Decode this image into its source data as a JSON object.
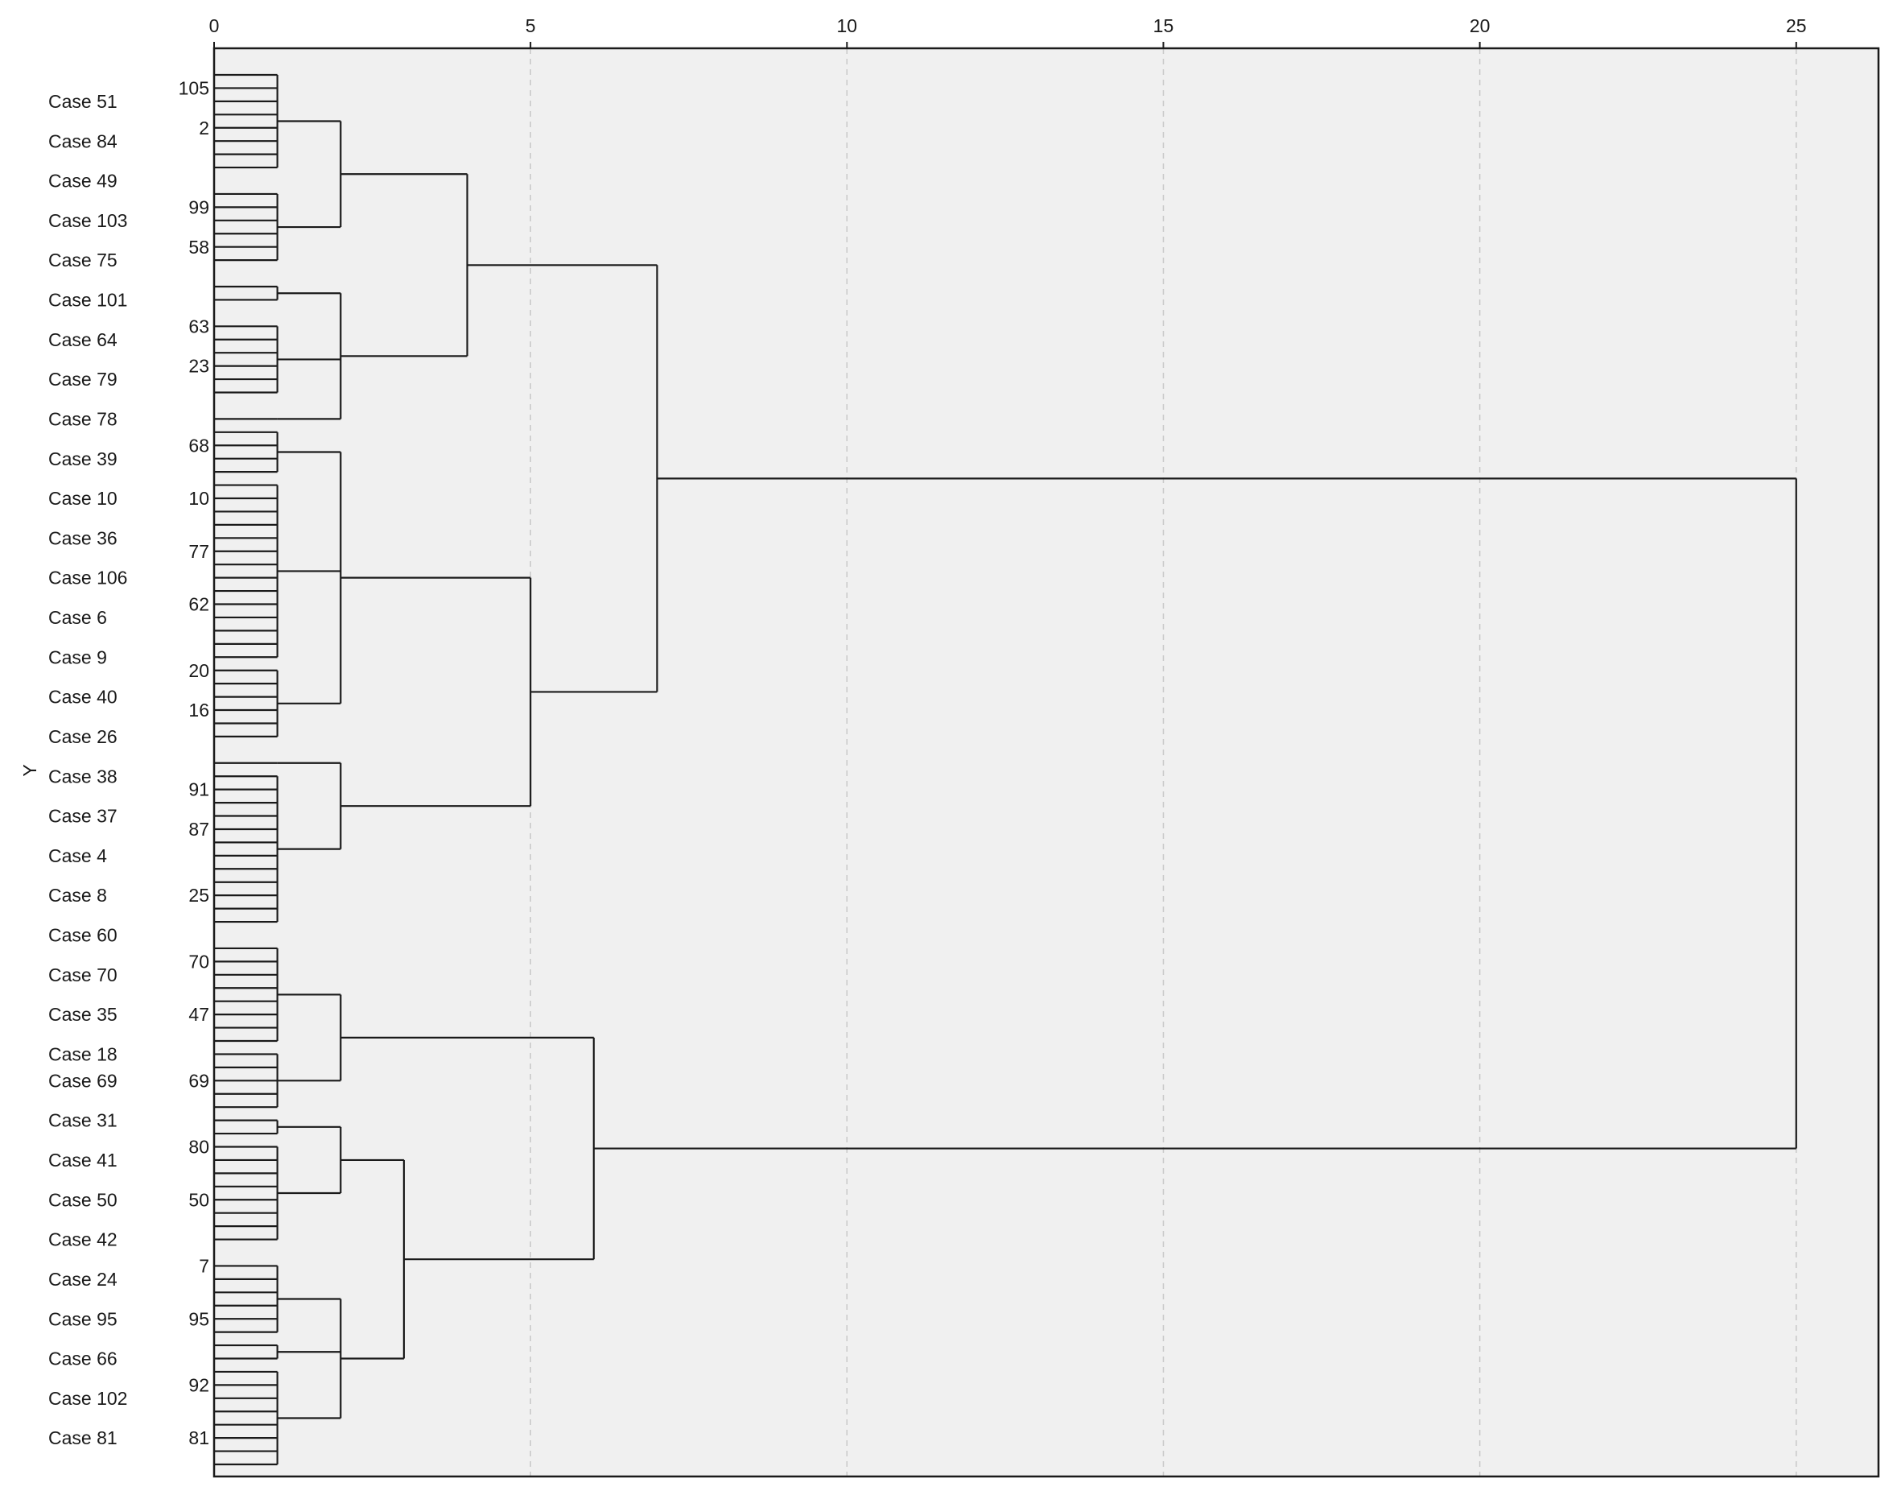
{
  "chart_data": {
    "type": "dendrogram",
    "y_label": "Y",
    "xlim": [
      0,
      26.3
    ],
    "xticks": [
      0,
      5,
      10,
      15,
      20,
      25
    ],
    "grid": true,
    "leaf_count": 106,
    "line_color": "#1a1a1a",
    "background": "#f0f0f0",
    "case_labels": [
      {
        "row": 2,
        "label": "Case 51"
      },
      {
        "row": 5,
        "label": "Case 84"
      },
      {
        "row": 8,
        "label": "Case 49"
      },
      {
        "row": 11,
        "label": "Case 103"
      },
      {
        "row": 14,
        "label": "Case 75"
      },
      {
        "row": 17,
        "label": "Case 101"
      },
      {
        "row": 20,
        "label": "Case 64"
      },
      {
        "row": 23,
        "label": "Case 79"
      },
      {
        "row": 26,
        "label": "Case 78"
      },
      {
        "row": 29,
        "label": "Case 39"
      },
      {
        "row": 32,
        "label": "Case 10"
      },
      {
        "row": 35,
        "label": "Case 36"
      },
      {
        "row": 38,
        "label": "Case 106"
      },
      {
        "row": 41,
        "label": "Case 6"
      },
      {
        "row": 44,
        "label": "Case 9"
      },
      {
        "row": 47,
        "label": "Case 40"
      },
      {
        "row": 50,
        "label": "Case 26"
      },
      {
        "row": 53,
        "label": "Case 38"
      },
      {
        "row": 56,
        "label": "Case 37"
      },
      {
        "row": 59,
        "label": "Case 4"
      },
      {
        "row": 62,
        "label": "Case 8"
      },
      {
        "row": 65,
        "label": "Case 60"
      },
      {
        "row": 68,
        "label": "Case 70"
      },
      {
        "row": 71,
        "label": "Case 35"
      },
      {
        "row": 74,
        "label": "Case 18"
      },
      {
        "row": 76,
        "label": "Case 69"
      },
      {
        "row": 79,
        "label": "Case 31"
      },
      {
        "row": 82,
        "label": "Case 41"
      },
      {
        "row": 85,
        "label": "Case 50"
      },
      {
        "row": 88,
        "label": "Case 42"
      },
      {
        "row": 91,
        "label": "Case 24"
      },
      {
        "row": 94,
        "label": "Case 95"
      },
      {
        "row": 97,
        "label": "Case 66"
      },
      {
        "row": 100,
        "label": "Case 102"
      },
      {
        "row": 103,
        "label": "Case 81"
      }
    ],
    "leaf_numbers": [
      {
        "row": 1,
        "label": "105"
      },
      {
        "row": 4,
        "label": "2"
      },
      {
        "row": 10,
        "label": "99"
      },
      {
        "row": 13,
        "label": "58"
      },
      {
        "row": 19,
        "label": "63"
      },
      {
        "row": 22,
        "label": "23"
      },
      {
        "row": 28,
        "label": "68"
      },
      {
        "row": 32,
        "label": "10"
      },
      {
        "row": 36,
        "label": "77"
      },
      {
        "row": 40,
        "label": "62"
      },
      {
        "row": 45,
        "label": "20"
      },
      {
        "row": 48,
        "label": "16"
      },
      {
        "row": 54,
        "label": "91"
      },
      {
        "row": 57,
        "label": "87"
      },
      {
        "row": 62,
        "label": "25"
      },
      {
        "row": 67,
        "label": "70"
      },
      {
        "row": 71,
        "label": "47"
      },
      {
        "row": 76,
        "label": "69"
      },
      {
        "row": 81,
        "label": "80"
      },
      {
        "row": 85,
        "label": "50"
      },
      {
        "row": 90,
        "label": "7"
      },
      {
        "row": 94,
        "label": "95"
      },
      {
        "row": 99,
        "label": "92"
      },
      {
        "row": 103,
        "label": "81"
      }
    ],
    "clusters": [
      {
        "height": 1,
        "rows": [
          0,
          7
        ]
      },
      {
        "height": 1,
        "rows": [
          9,
          14
        ]
      },
      {
        "height": 2,
        "children": [
          0,
          1
        ]
      },
      {
        "height": 1,
        "rows": [
          16,
          17
        ]
      },
      {
        "height": 1,
        "rows": [
          19,
          24
        ]
      },
      {
        "height": 1,
        "rows": [
          26,
          26
        ]
      },
      {
        "height": 2,
        "children": [
          3,
          4,
          5
        ]
      },
      {
        "height": 4,
        "children": [
          2,
          6
        ]
      },
      {
        "height": 1,
        "rows": [
          27,
          30
        ]
      },
      {
        "height": 1,
        "rows": [
          31,
          44
        ]
      },
      {
        "height": 1,
        "rows": [
          45,
          50
        ]
      },
      {
        "height": 2,
        "children": [
          8,
          9,
          10
        ]
      },
      {
        "height": 1,
        "rows": [
          52,
          52
        ]
      },
      {
        "height": 1,
        "rows": [
          53,
          64
        ]
      },
      {
        "height": 2,
        "children": [
          12,
          13
        ]
      },
      {
        "height": 5,
        "children": [
          11,
          14
        ]
      },
      {
        "height": 7,
        "children": [
          7,
          15
        ]
      },
      {
        "height": 1,
        "rows": [
          66,
          73
        ]
      },
      {
        "height": 1,
        "rows": [
          74,
          78
        ]
      },
      {
        "height": 2,
        "children": [
          17,
          18
        ]
      },
      {
        "height": 1,
        "rows": [
          79,
          80
        ]
      },
      {
        "height": 1,
        "rows": [
          81,
          88
        ]
      },
      {
        "height": 2,
        "children": [
          20,
          21
        ]
      },
      {
        "height": 1,
        "rows": [
          90,
          95
        ]
      },
      {
        "height": 1,
        "rows": [
          96,
          97
        ]
      },
      {
        "height": 1,
        "rows": [
          98,
          105
        ]
      },
      {
        "height": 2,
        "children": [
          23,
          24,
          25
        ]
      },
      {
        "height": 3,
        "children": [
          22,
          26
        ]
      },
      {
        "height": 6,
        "children": [
          19,
          27
        ]
      },
      {
        "height": 25,
        "children": [
          16,
          28
        ]
      }
    ]
  }
}
